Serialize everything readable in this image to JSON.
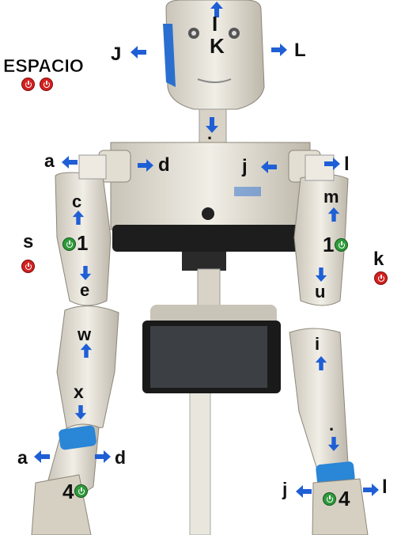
{
  "colors": {
    "arrow": "#1f5fd6",
    "power_red": "#d42020",
    "power_green": "#2e9a3a"
  },
  "labels": {
    "head_up": "I",
    "head_center": "K",
    "head_left": "J",
    "head_right": "L",
    "space": "ESPACIO",
    "neck": ".",
    "shoulder_l_out": "a",
    "shoulder_l_in": "d",
    "shoulder_r_in": "j",
    "shoulder_r_out": "l",
    "upper_arm_l": "c",
    "upper_arm_r": "m",
    "toggle_l": "1",
    "toggle_r": "1",
    "side_l": "s",
    "side_r": "k",
    "elbow_l": "e",
    "elbow_r": "u",
    "forearm_l": "w",
    "forearm_r": "i",
    "wrist_l": "x",
    "wrist_r": ".",
    "hand_l_out": "a",
    "hand_l_in": "d",
    "hand_r_in": "j",
    "hand_r_out": "l",
    "grip_l": "4",
    "grip_r": "4"
  },
  "icons": {
    "arrow": "blue-arrow-icon",
    "power": "power-icon"
  }
}
